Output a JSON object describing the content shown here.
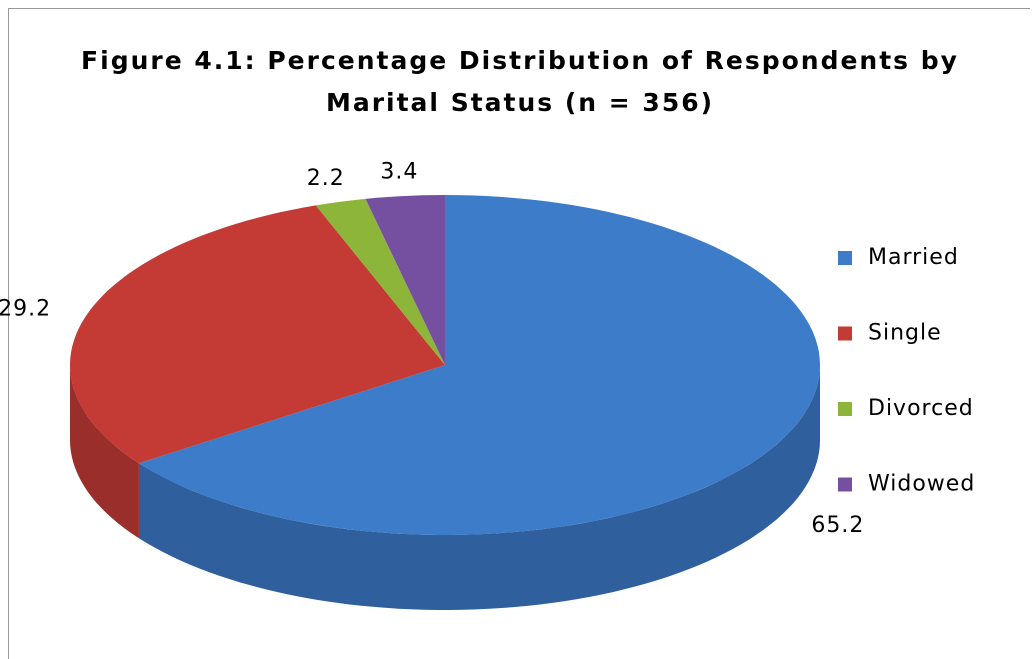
{
  "chart_data": {
    "type": "pie",
    "title": "Figure 4.1: Percentage Distribution of Respondents by Marital Status (n = 356)",
    "categories": [
      "Married",
      "Single",
      "Divorced",
      "Widowed"
    ],
    "values": [
      65.2,
      29.2,
      2.2,
      3.4
    ],
    "colors": [
      "#3d7cc9",
      "#c43b36",
      "#8db53a",
      "#7650a0"
    ],
    "legend": "right"
  }
}
